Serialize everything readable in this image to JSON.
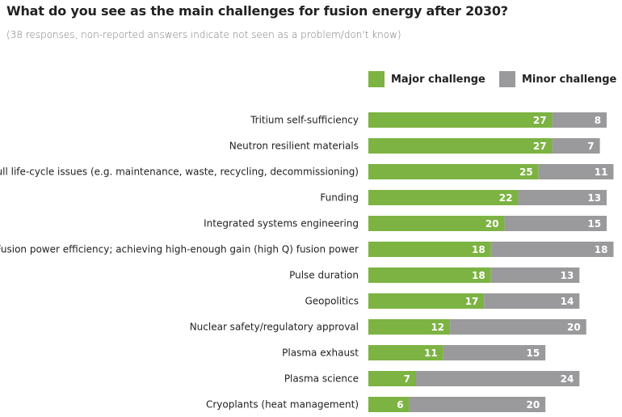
{
  "chart_data": {
    "type": "bar",
    "orientation": "horizontal",
    "stacked": true,
    "title": "What do you see as the main challenges for fusion energy after 2030?",
    "subtitle": "(38 responses, non-reported answers indicate not seen as a problem/don't know)",
    "legend_position": "top-right",
    "grid": false,
    "categories": [
      "Tritium self-sufficiency",
      "Neutron resilient materials",
      "Full life-cycle issues (e.g. maintenance, waste, recycling, decommissioning)",
      "Funding",
      "Integrated systems engineering",
      "Fusion power efficiency; achieving high-enough gain (high Q) fusion power",
      "Pulse duration",
      "Geopolitics",
      "Nuclear safety/regulatory approval",
      "Plasma exhaust",
      "Plasma science",
      "Cryoplants (heat management)"
    ],
    "series": [
      {
        "name": "Major challenge",
        "color": "#7cb342",
        "values": [
          27,
          27,
          25,
          22,
          20,
          18,
          18,
          17,
          12,
          11,
          7,
          6
        ]
      },
      {
        "name": "Minor challenge",
        "color": "#9a9a9c",
        "values": [
          8,
          7,
          11,
          13,
          15,
          18,
          13,
          14,
          20,
          15,
          24,
          20
        ]
      }
    ]
  }
}
